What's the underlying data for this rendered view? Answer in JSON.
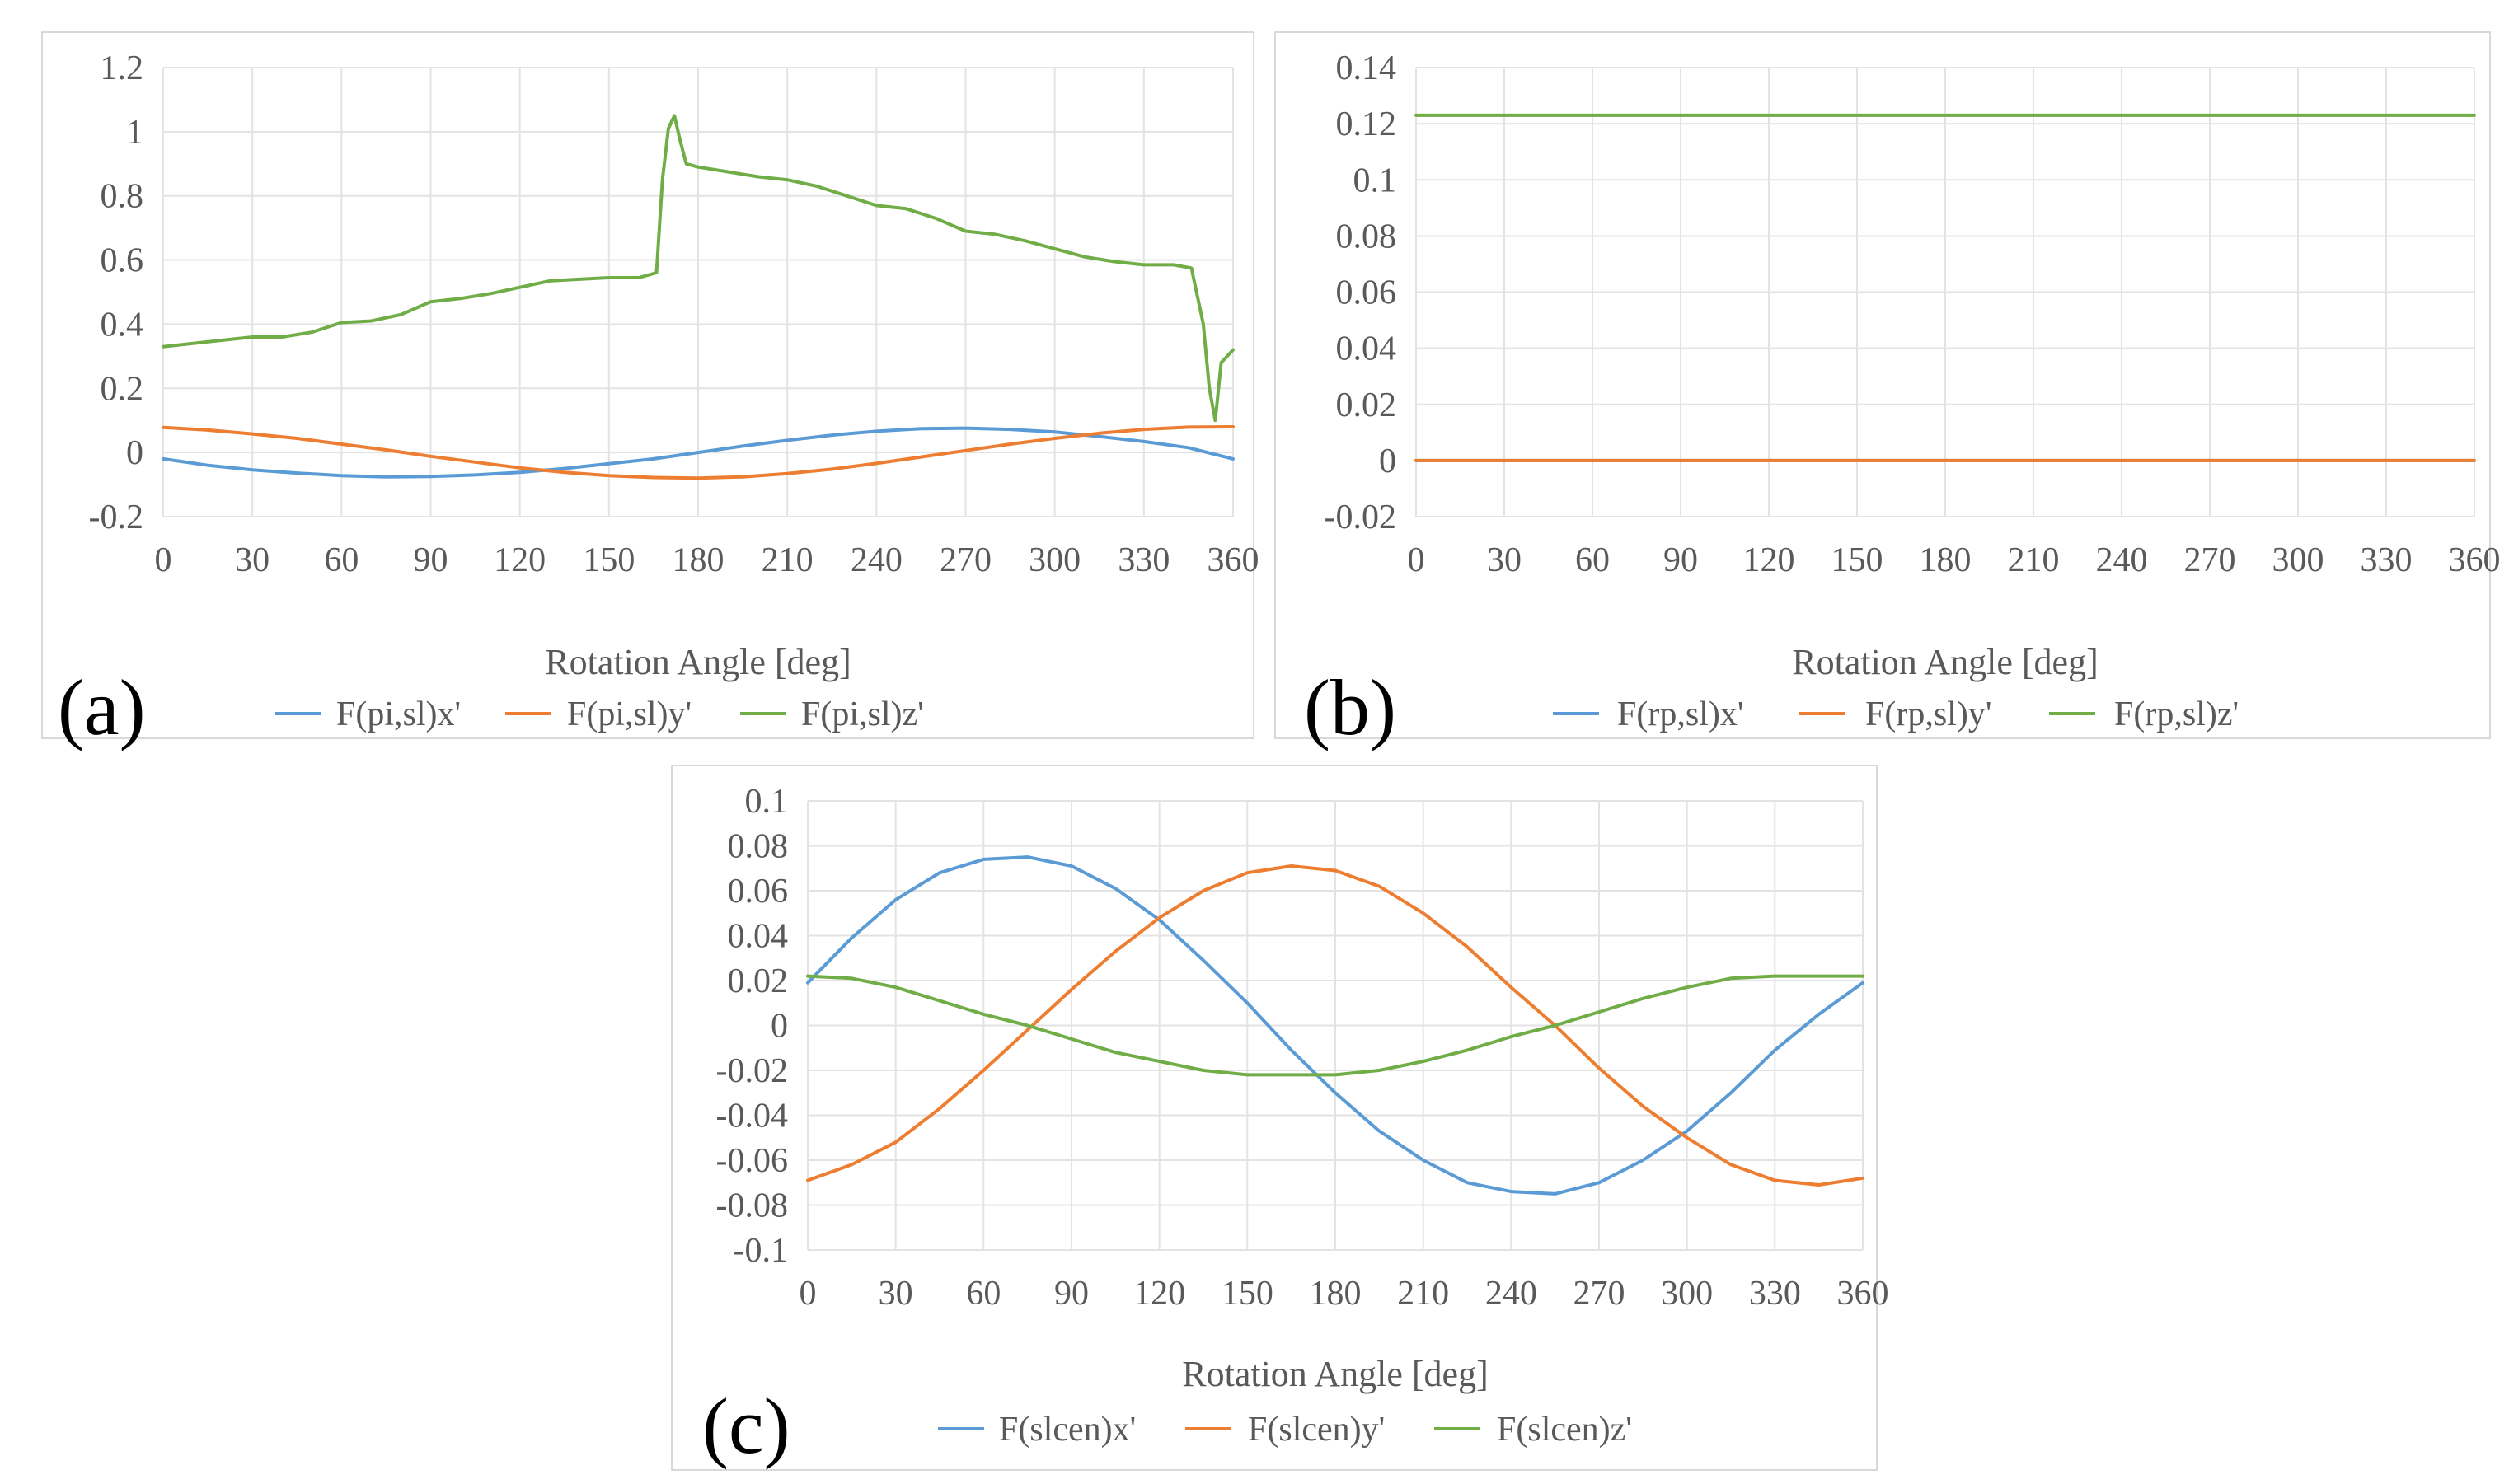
{
  "chart_data": [
    {
      "type": "line",
      "panel_label": "(a)",
      "xlabel": "Rotation Angle  [deg]",
      "ylabel": "",
      "xlim": [
        0,
        360
      ],
      "ylim": [
        -0.2,
        1.2
      ],
      "x_ticks": [
        0,
        30,
        60,
        90,
        120,
        150,
        180,
        210,
        240,
        270,
        300,
        330,
        360
      ],
      "x_tick_labels": [
        "0",
        "30",
        "60",
        "90",
        "120",
        "150",
        "180",
        "210",
        "240",
        "270",
        "300",
        "330",
        "360"
      ],
      "y_ticks": [
        -0.2,
        0,
        0.2,
        0.4,
        0.6,
        0.8,
        1,
        1.2
      ],
      "y_tick_labels": [
        "-0.2",
        "0",
        "0.2",
        "0.4",
        "0.6",
        "0.8",
        "1",
        "1.2"
      ],
      "grid": true,
      "legend_position": "bottom",
      "series": [
        {
          "name": "F(pi,sl)x'",
          "color": "#5b9bd5",
          "x": [
            0,
            15,
            30,
            45,
            60,
            75,
            90,
            105,
            120,
            135,
            150,
            165,
            180,
            195,
            210,
            225,
            240,
            255,
            270,
            285,
            300,
            315,
            330,
            345,
            360
          ],
          "y": [
            -0.02,
            -0.04,
            -0.054,
            -0.064,
            -0.072,
            -0.076,
            -0.075,
            -0.07,
            -0.062,
            -0.05,
            -0.035,
            -0.02,
            0.0,
            0.02,
            0.038,
            0.054,
            0.066,
            0.074,
            0.076,
            0.072,
            0.064,
            0.05,
            0.034,
            0.015,
            -0.02
          ]
        },
        {
          "name": "F(pi,sl)y'",
          "color": "#ed7d31",
          "x": [
            0,
            15,
            30,
            45,
            60,
            75,
            90,
            105,
            120,
            135,
            150,
            165,
            180,
            195,
            210,
            225,
            240,
            255,
            270,
            285,
            300,
            315,
            330,
            345,
            360
          ],
          "y": [
            0.078,
            0.07,
            0.058,
            0.044,
            0.026,
            0.008,
            -0.012,
            -0.03,
            -0.048,
            -0.062,
            -0.072,
            -0.078,
            -0.08,
            -0.076,
            -0.066,
            -0.052,
            -0.034,
            -0.014,
            0.006,
            0.026,
            0.044,
            0.06,
            0.072,
            0.079,
            0.08
          ]
        },
        {
          "name": "F(pi,sl)z'",
          "color": "#70ad47",
          "x": [
            0,
            10,
            20,
            30,
            40,
            50,
            60,
            70,
            80,
            90,
            100,
            110,
            120,
            130,
            140,
            150,
            160,
            166,
            168,
            170,
            172,
            174,
            176,
            180,
            190,
            200,
            210,
            220,
            230,
            240,
            250,
            260,
            270,
            280,
            290,
            300,
            310,
            320,
            330,
            340,
            346,
            350,
            352,
            354,
            356,
            360
          ],
          "y": [
            0.33,
            0.34,
            0.35,
            0.36,
            0.36,
            0.375,
            0.405,
            0.41,
            0.43,
            0.47,
            0.48,
            0.495,
            0.515,
            0.535,
            0.54,
            0.545,
            0.545,
            0.56,
            0.85,
            1.01,
            1.05,
            0.97,
            0.9,
            0.89,
            0.875,
            0.86,
            0.85,
            0.83,
            0.8,
            0.77,
            0.76,
            0.73,
            0.69,
            0.68,
            0.66,
            0.635,
            0.61,
            0.595,
            0.585,
            0.585,
            0.575,
            0.4,
            0.2,
            0.1,
            0.28,
            0.32
          ]
        }
      ]
    },
    {
      "type": "line",
      "panel_label": "(b)",
      "xlabel": "Rotation Angle  [deg]",
      "ylabel": "",
      "xlim": [
        0,
        360
      ],
      "ylim": [
        -0.02,
        0.14
      ],
      "x_ticks": [
        0,
        30,
        60,
        90,
        120,
        150,
        180,
        210,
        240,
        270,
        300,
        330,
        360
      ],
      "x_tick_labels": [
        "0",
        "30",
        "60",
        "90",
        "120",
        "150",
        "180",
        "210",
        "240",
        "270",
        "300",
        "330",
        "360"
      ],
      "y_ticks": [
        -0.02,
        0,
        0.02,
        0.04,
        0.06,
        0.08,
        0.1,
        0.12,
        0.14
      ],
      "y_tick_labels": [
        "-0.02",
        "0",
        "0.02",
        "0.04",
        "0.06",
        "0.08",
        "0.1",
        "0.12",
        "0.14"
      ],
      "grid": true,
      "legend_position": "bottom",
      "series": [
        {
          "name": "F(rp,sl)x'",
          "color": "#5b9bd5",
          "x": [
            0,
            360
          ],
          "y": [
            0,
            0
          ]
        },
        {
          "name": "F(rp,sl)y'",
          "color": "#ed7d31",
          "x": [
            0,
            360
          ],
          "y": [
            0,
            0
          ]
        },
        {
          "name": "F(rp,sl)z'",
          "color": "#70ad47",
          "x": [
            0,
            360
          ],
          "y": [
            0.123,
            0.123
          ]
        }
      ]
    },
    {
      "type": "line",
      "panel_label": "(c)",
      "xlabel": "Rotation Angle  [deg]",
      "ylabel": "",
      "xlim": [
        0,
        360
      ],
      "ylim": [
        -0.1,
        0.1
      ],
      "x_ticks": [
        0,
        30,
        60,
        90,
        120,
        150,
        180,
        210,
        240,
        270,
        300,
        330,
        360
      ],
      "x_tick_labels": [
        "0",
        "30",
        "60",
        "90",
        "120",
        "150",
        "180",
        "210",
        "240",
        "270",
        "300",
        "330",
        "360"
      ],
      "y_ticks": [
        -0.1,
        -0.08,
        -0.06,
        -0.04,
        -0.02,
        0,
        0.02,
        0.04,
        0.06,
        0.08,
        0.1
      ],
      "y_tick_labels": [
        "-0.1",
        "-0.08",
        "-0.06",
        "-0.04",
        "-0.02",
        "0",
        "0.02",
        "0.04",
        "0.06",
        "0.08",
        "0.1"
      ],
      "grid": true,
      "legend_position": "bottom",
      "series": [
        {
          "name": "F(slcen)x'",
          "color": "#5b9bd5",
          "x": [
            0,
            15,
            30,
            45,
            60,
            75,
            90,
            105,
            120,
            135,
            150,
            165,
            180,
            195,
            210,
            225,
            240,
            255,
            270,
            285,
            300,
            315,
            330,
            345,
            360
          ],
          "y": [
            0.019,
            0.039,
            0.056,
            0.068,
            0.074,
            0.075,
            0.071,
            0.061,
            0.047,
            0.029,
            0.01,
            -0.011,
            -0.03,
            -0.047,
            -0.06,
            -0.07,
            -0.074,
            -0.075,
            -0.07,
            -0.06,
            -0.047,
            -0.03,
            -0.011,
            0.005,
            0.019
          ]
        },
        {
          "name": "F(slcen)y'",
          "color": "#ed7d31",
          "x": [
            0,
            15,
            30,
            45,
            60,
            75,
            90,
            105,
            120,
            135,
            150,
            165,
            180,
            195,
            210,
            225,
            240,
            255,
            270,
            285,
            300,
            315,
            330,
            345,
            360
          ],
          "y": [
            -0.069,
            -0.062,
            -0.052,
            -0.037,
            -0.02,
            -0.002,
            0.016,
            0.033,
            0.048,
            0.06,
            0.068,
            0.071,
            0.069,
            0.062,
            0.05,
            0.035,
            0.017,
            0.0,
            -0.019,
            -0.036,
            -0.05,
            -0.062,
            -0.069,
            -0.071,
            -0.068
          ]
        },
        {
          "name": "F(slcen)z'",
          "color": "#70ad47",
          "x": [
            0,
            15,
            30,
            45,
            60,
            75,
            90,
            105,
            120,
            135,
            150,
            165,
            180,
            195,
            210,
            225,
            240,
            255,
            270,
            285,
            300,
            315,
            330,
            345,
            360
          ],
          "y": [
            0.022,
            0.021,
            0.017,
            0.011,
            0.005,
            0.0,
            -0.006,
            -0.012,
            -0.016,
            -0.02,
            -0.022,
            -0.022,
            -0.022,
            -0.02,
            -0.016,
            -0.011,
            -0.005,
            0.0,
            0.006,
            0.012,
            0.017,
            0.021,
            0.022,
            0.022,
            0.022
          ]
        }
      ]
    }
  ]
}
